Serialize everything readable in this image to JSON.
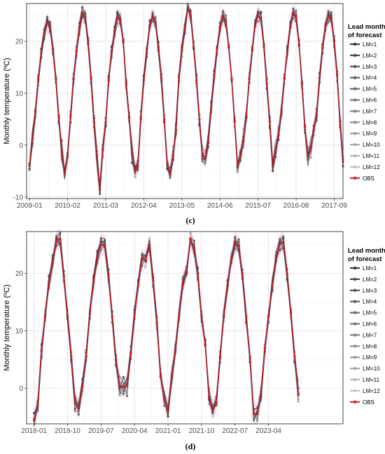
{
  "chart_data": [
    {
      "panel": "(c)",
      "type": "line",
      "ylabel": "Monthly temperature (ºC)",
      "xlabel": "",
      "ylim": [
        -10.3,
        27.3
      ],
      "yticks": [
        -10,
        0,
        10,
        20
      ],
      "x_range": [
        "2008-12",
        "2017-12"
      ],
      "x_ticks": [
        "2009-01",
        "2010-02",
        "2011-03",
        "2012-04",
        "2013-05",
        "2014-06",
        "2015-07",
        "2016-08",
        "2017-09"
      ],
      "start": "2009-01",
      "months": 108,
      "grid": true,
      "legend_position": "right",
      "legend_title": "Lead month of forecast",
      "series_names": [
        "LM=1",
        "LM=2",
        "LM=3",
        "LM=4",
        "LM=5",
        "LM=6",
        "LM=7",
        "LM=8",
        "LM=9",
        "LM=10",
        "LM=11",
        "LM=12",
        "OBS"
      ],
      "series_colors": [
        "#3f3f3f",
        "#4a4a4a",
        "#555555",
        "#606060",
        "#6b6b6b",
        "#777777",
        "#838383",
        "#909090",
        "#9c9c9c",
        "#a9a9a9",
        "#b6b6b6",
        "#c3c3c3",
        "#b2182b"
      ],
      "band_color": "#f8c8e4",
      "obs_color": "#b2182b",
      "obs_fill": "#e41a1c",
      "obs": [
        -4.0,
        1.2,
        6.5,
        12.6,
        17.8,
        21.5,
        23.6,
        23.0,
        18.5,
        12.8,
        5.2,
        -1.0,
        -5.5,
        -2.0,
        5.5,
        12.8,
        18.0,
        22.5,
        25.5,
        24.8,
        19.5,
        12.8,
        4.5,
        -2.0,
        -8.5,
        -1.0,
        4.5,
        12.5,
        18.0,
        22.0,
        24.5,
        24.3,
        19.8,
        12.0,
        5.2,
        -1.5,
        -5.0,
        -4.0,
        5.5,
        12.5,
        18.0,
        23.0,
        24.8,
        23.8,
        18.8,
        12.8,
        5.0,
        -3.5,
        -5.5,
        -2.0,
        2.8,
        13.0,
        18.2,
        22.5,
        26.2,
        25.0,
        19.0,
        12.5,
        5.0,
        -2.0,
        -2.5,
        0.5,
        7.2,
        13.2,
        18.5,
        22.5,
        24.8,
        24.0,
        18.8,
        12.8,
        4.5,
        -4.0,
        -2.0,
        1.0,
        5.8,
        12.8,
        18.5,
        23.0,
        25.0,
        24.5,
        19.0,
        11.8,
        4.5,
        -4.0,
        -1.0,
        2.0,
        6.8,
        13.0,
        18.0,
        22.8,
        25.5,
        24.8,
        19.5,
        11.8,
        3.5,
        -2.0,
        -0.5,
        3.0,
        5.8,
        13.0,
        18.8,
        23.0,
        24.8,
        24.5,
        20.0,
        13.5,
        4.5,
        -3.2
      ]
    },
    {
      "panel": "(d)",
      "type": "line",
      "ylabel": "Monthly temperature (ºC)",
      "xlabel": "",
      "ylim": [
        -6.2,
        27.3
      ],
      "yticks": [
        0,
        10,
        20
      ],
      "x_range": [
        "2017-11",
        "2024-12"
      ],
      "x_ticks": [
        "2018-01",
        "2018-10",
        "2019-07",
        "2020-04",
        "2021-01",
        "2021-10",
        "2022-07",
        "2023-04"
      ],
      "start": "2018-01",
      "months": 84,
      "grid": true,
      "legend_position": "right",
      "legend_title": "Lead month of forecast",
      "series_names": [
        "LM=1",
        "LM=2",
        "LM=3",
        "LM=4",
        "LM=5",
        "LM=6",
        "LM=7",
        "LM=8",
        "LM=9",
        "LM=10",
        "LM=11",
        "LM=12",
        "OBS"
      ],
      "series_colors": [
        "#3f3f3f",
        "#4a4a4a",
        "#555555",
        "#606060",
        "#6b6b6b",
        "#777777",
        "#838383",
        "#909090",
        "#9c9c9c",
        "#a9a9a9",
        "#b6b6b6",
        "#c3c3c3",
        "#b2182b"
      ],
      "band_color": "#f8c8e4",
      "obs_color": "#b2182b",
      "obs_fill": "#e41a1c",
      "obs": [
        -5.5,
        -3.0,
        6.5,
        12.8,
        18.5,
        22.0,
        25.8,
        26.0,
        19.5,
        12.5,
        5.5,
        -2.5,
        -3.5,
        0.5,
        5.5,
        13.0,
        18.5,
        22.8,
        25.0,
        25.0,
        19.5,
        12.5,
        5.0,
        0.3,
        0.2,
        0.5,
        6.2,
        13.0,
        18.0,
        22.5,
        22.3,
        25.0,
        18.8,
        11.5,
        2.0,
        -2.0,
        -4.0,
        2.0,
        6.8,
        13.0,
        18.5,
        20.2,
        26.0,
        24.5,
        20.0,
        12.5,
        7.5,
        -1.5,
        -3.8,
        -2.5,
        5.5,
        12.8,
        18.0,
        22.5,
        25.5,
        24.8,
        19.5,
        12.5,
        5.5,
        -4.5,
        -4.5,
        -0.5,
        7.0,
        12.5,
        18.0,
        22.8,
        25.0,
        25.5,
        19.8,
        13.0,
        5.5,
        -1.0
      ]
    }
  ],
  "panel_labels": [
    "(c)",
    "(d)"
  ]
}
